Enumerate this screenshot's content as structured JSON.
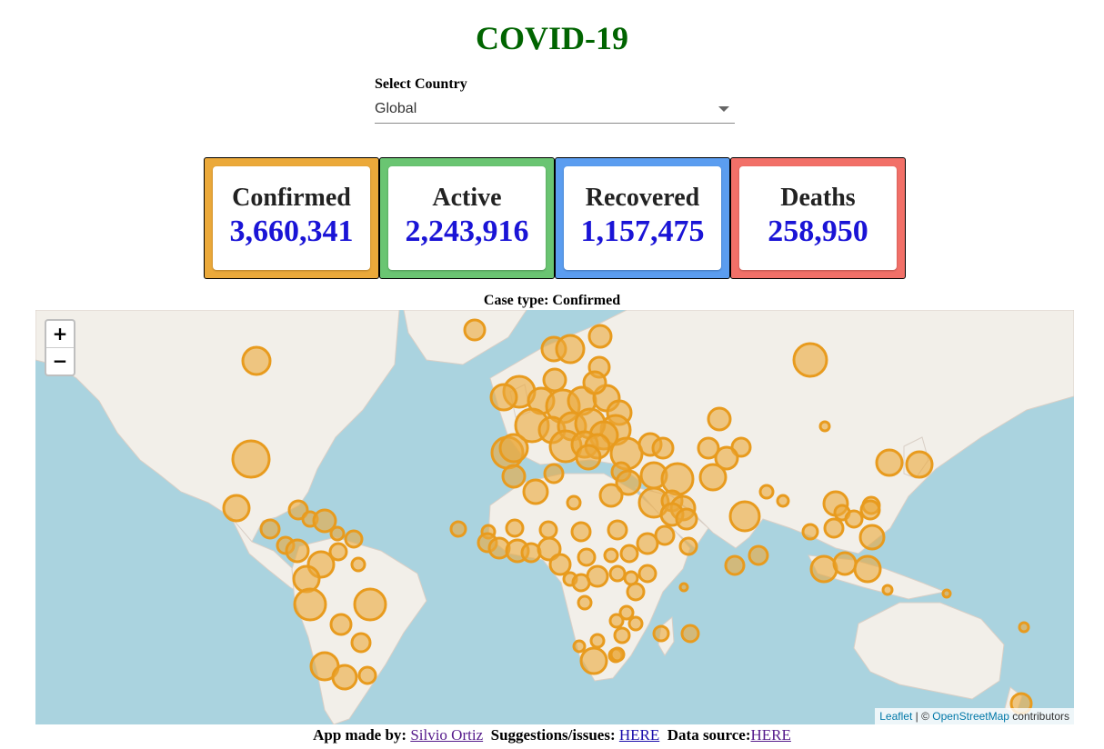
{
  "title": "COVID-19",
  "select": {
    "label": "Select Country",
    "value": "Global"
  },
  "cards": [
    {
      "label": "Confirmed",
      "value": "3,660,341",
      "color": "#eba93a"
    },
    {
      "label": "Active",
      "value": "2,243,916",
      "color": "#6ac572"
    },
    {
      "label": "Recovered",
      "value": "1,157,475",
      "color": "#5b9df0"
    },
    {
      "label": "Deaths",
      "value": "258,950",
      "color": "#f27068"
    }
  ],
  "case_type": "Case type: Confirmed",
  "map": {
    "zoom_in": "+",
    "zoom_out": "−",
    "attribution": {
      "leaflet": "Leaflet",
      "sep": " | © ",
      "osm": "OpenStreetMap",
      "suffix": " contributors"
    },
    "colors": {
      "water": "#aad3df",
      "land": "#f2efe9",
      "marker_fill": "#eba93a",
      "marker_stroke": "#e89b1e"
    }
  },
  "footer": {
    "made_by_label": "App made by:",
    "author": "Silvio Ortiz",
    "suggestions_label": "Suggestions/issues:",
    "suggestions_link": "HERE",
    "source_label": "Data source:",
    "source_link": "HERE"
  }
}
